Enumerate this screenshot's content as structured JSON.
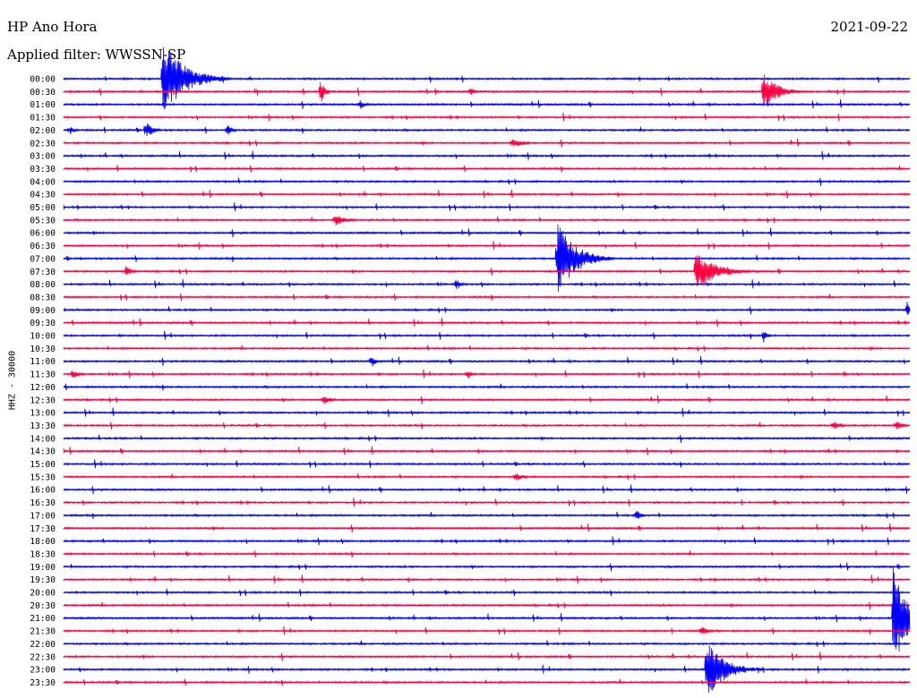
{
  "header": {
    "station": "HP Ano Hora",
    "date": "2021-09-22",
    "filter": "Applied filter: WWSSN-SP",
    "channel_label": "HHZ - 30000"
  },
  "colors": {
    "odd": "#ff0040",
    "even": "#0000ff"
  },
  "chart_data": {
    "type": "line",
    "title": "",
    "xlabel": "",
    "ylabel": "HHZ - 30000",
    "x_unit": "minutes within trace row",
    "x_range": [
      0,
      30
    ],
    "row_labels": [
      "00:00",
      "00:30",
      "01:00",
      "01:30",
      "02:00",
      "02:30",
      "03:00",
      "03:30",
      "04:00",
      "04:30",
      "05:00",
      "05:30",
      "06:00",
      "06:30",
      "07:00",
      "07:30",
      "08:00",
      "08:30",
      "09:00",
      "09:30",
      "10:00",
      "10:30",
      "11:00",
      "11:30",
      "12:00",
      "12:30",
      "13:00",
      "13:30",
      "14:00",
      "14:30",
      "15:00",
      "15:30",
      "16:00",
      "16:30",
      "17:00",
      "17:30",
      "18:00",
      "18:30",
      "19:00",
      "19:30",
      "20:00",
      "20:30",
      "21:00",
      "21:30",
      "22:00",
      "22:30",
      "23:00",
      "23:30"
    ],
    "events": [
      {
        "row": 0,
        "minute": 3.5,
        "amplitude": 45,
        "duration": 2.4
      },
      {
        "row": 1,
        "minute": 9.1,
        "amplitude": 16,
        "duration": 0.4
      },
      {
        "row": 1,
        "minute": 14.4,
        "amplitude": 6,
        "duration": 0.5
      },
      {
        "row": 1,
        "minute": 24.8,
        "amplitude": 22,
        "duration": 1.5
      },
      {
        "row": 2,
        "minute": 10.5,
        "amplitude": 5,
        "duration": 0.6
      },
      {
        "row": 4,
        "minute": 0.2,
        "amplitude": 6,
        "duration": 0.4
      },
      {
        "row": 4,
        "minute": 2.9,
        "amplitude": 10,
        "duration": 0.8
      },
      {
        "row": 4,
        "minute": 5.8,
        "amplitude": 7,
        "duration": 0.5
      },
      {
        "row": 5,
        "minute": 15.9,
        "amplitude": 6,
        "duration": 1.2
      },
      {
        "row": 11,
        "minute": 9.6,
        "amplitude": 7,
        "duration": 1.2
      },
      {
        "row": 14,
        "minute": 17.5,
        "amplitude": 42,
        "duration": 2.0
      },
      {
        "row": 15,
        "minute": 2.2,
        "amplitude": 7,
        "duration": 0.6
      },
      {
        "row": 15,
        "minute": 22.4,
        "amplitude": 22,
        "duration": 2.2
      },
      {
        "row": 16,
        "minute": 13.9,
        "amplitude": 6,
        "duration": 0.5
      },
      {
        "row": 18,
        "minute": 29.9,
        "amplitude": 14,
        "duration": 0.2
      },
      {
        "row": 20,
        "minute": 24.8,
        "amplitude": 8,
        "duration": 0.4
      },
      {
        "row": 22,
        "minute": 10.9,
        "amplitude": 8,
        "duration": 0.4
      },
      {
        "row": 23,
        "minute": 0.3,
        "amplitude": 6,
        "duration": 0.8
      },
      {
        "row": 23,
        "minute": 14.3,
        "amplitude": 7,
        "duration": 0.4
      },
      {
        "row": 25,
        "minute": 9.2,
        "amplitude": 6,
        "duration": 0.8
      },
      {
        "row": 27,
        "minute": 27.3,
        "amplitude": 6,
        "duration": 0.8
      },
      {
        "row": 27,
        "minute": 29.5,
        "amplitude": 6,
        "duration": 0.8
      },
      {
        "row": 31,
        "minute": 16.0,
        "amplitude": 6,
        "duration": 0.8
      },
      {
        "row": 34,
        "minute": 20.3,
        "amplitude": 7,
        "duration": 0.5
      },
      {
        "row": 42,
        "minute": 29.4,
        "amplitude": 60,
        "duration": 1.5
      },
      {
        "row": 43,
        "minute": 22.6,
        "amplitude": 6,
        "duration": 0.8
      },
      {
        "row": 46,
        "minute": 22.8,
        "amplitude": 32,
        "duration": 2.0
      }
    ]
  }
}
